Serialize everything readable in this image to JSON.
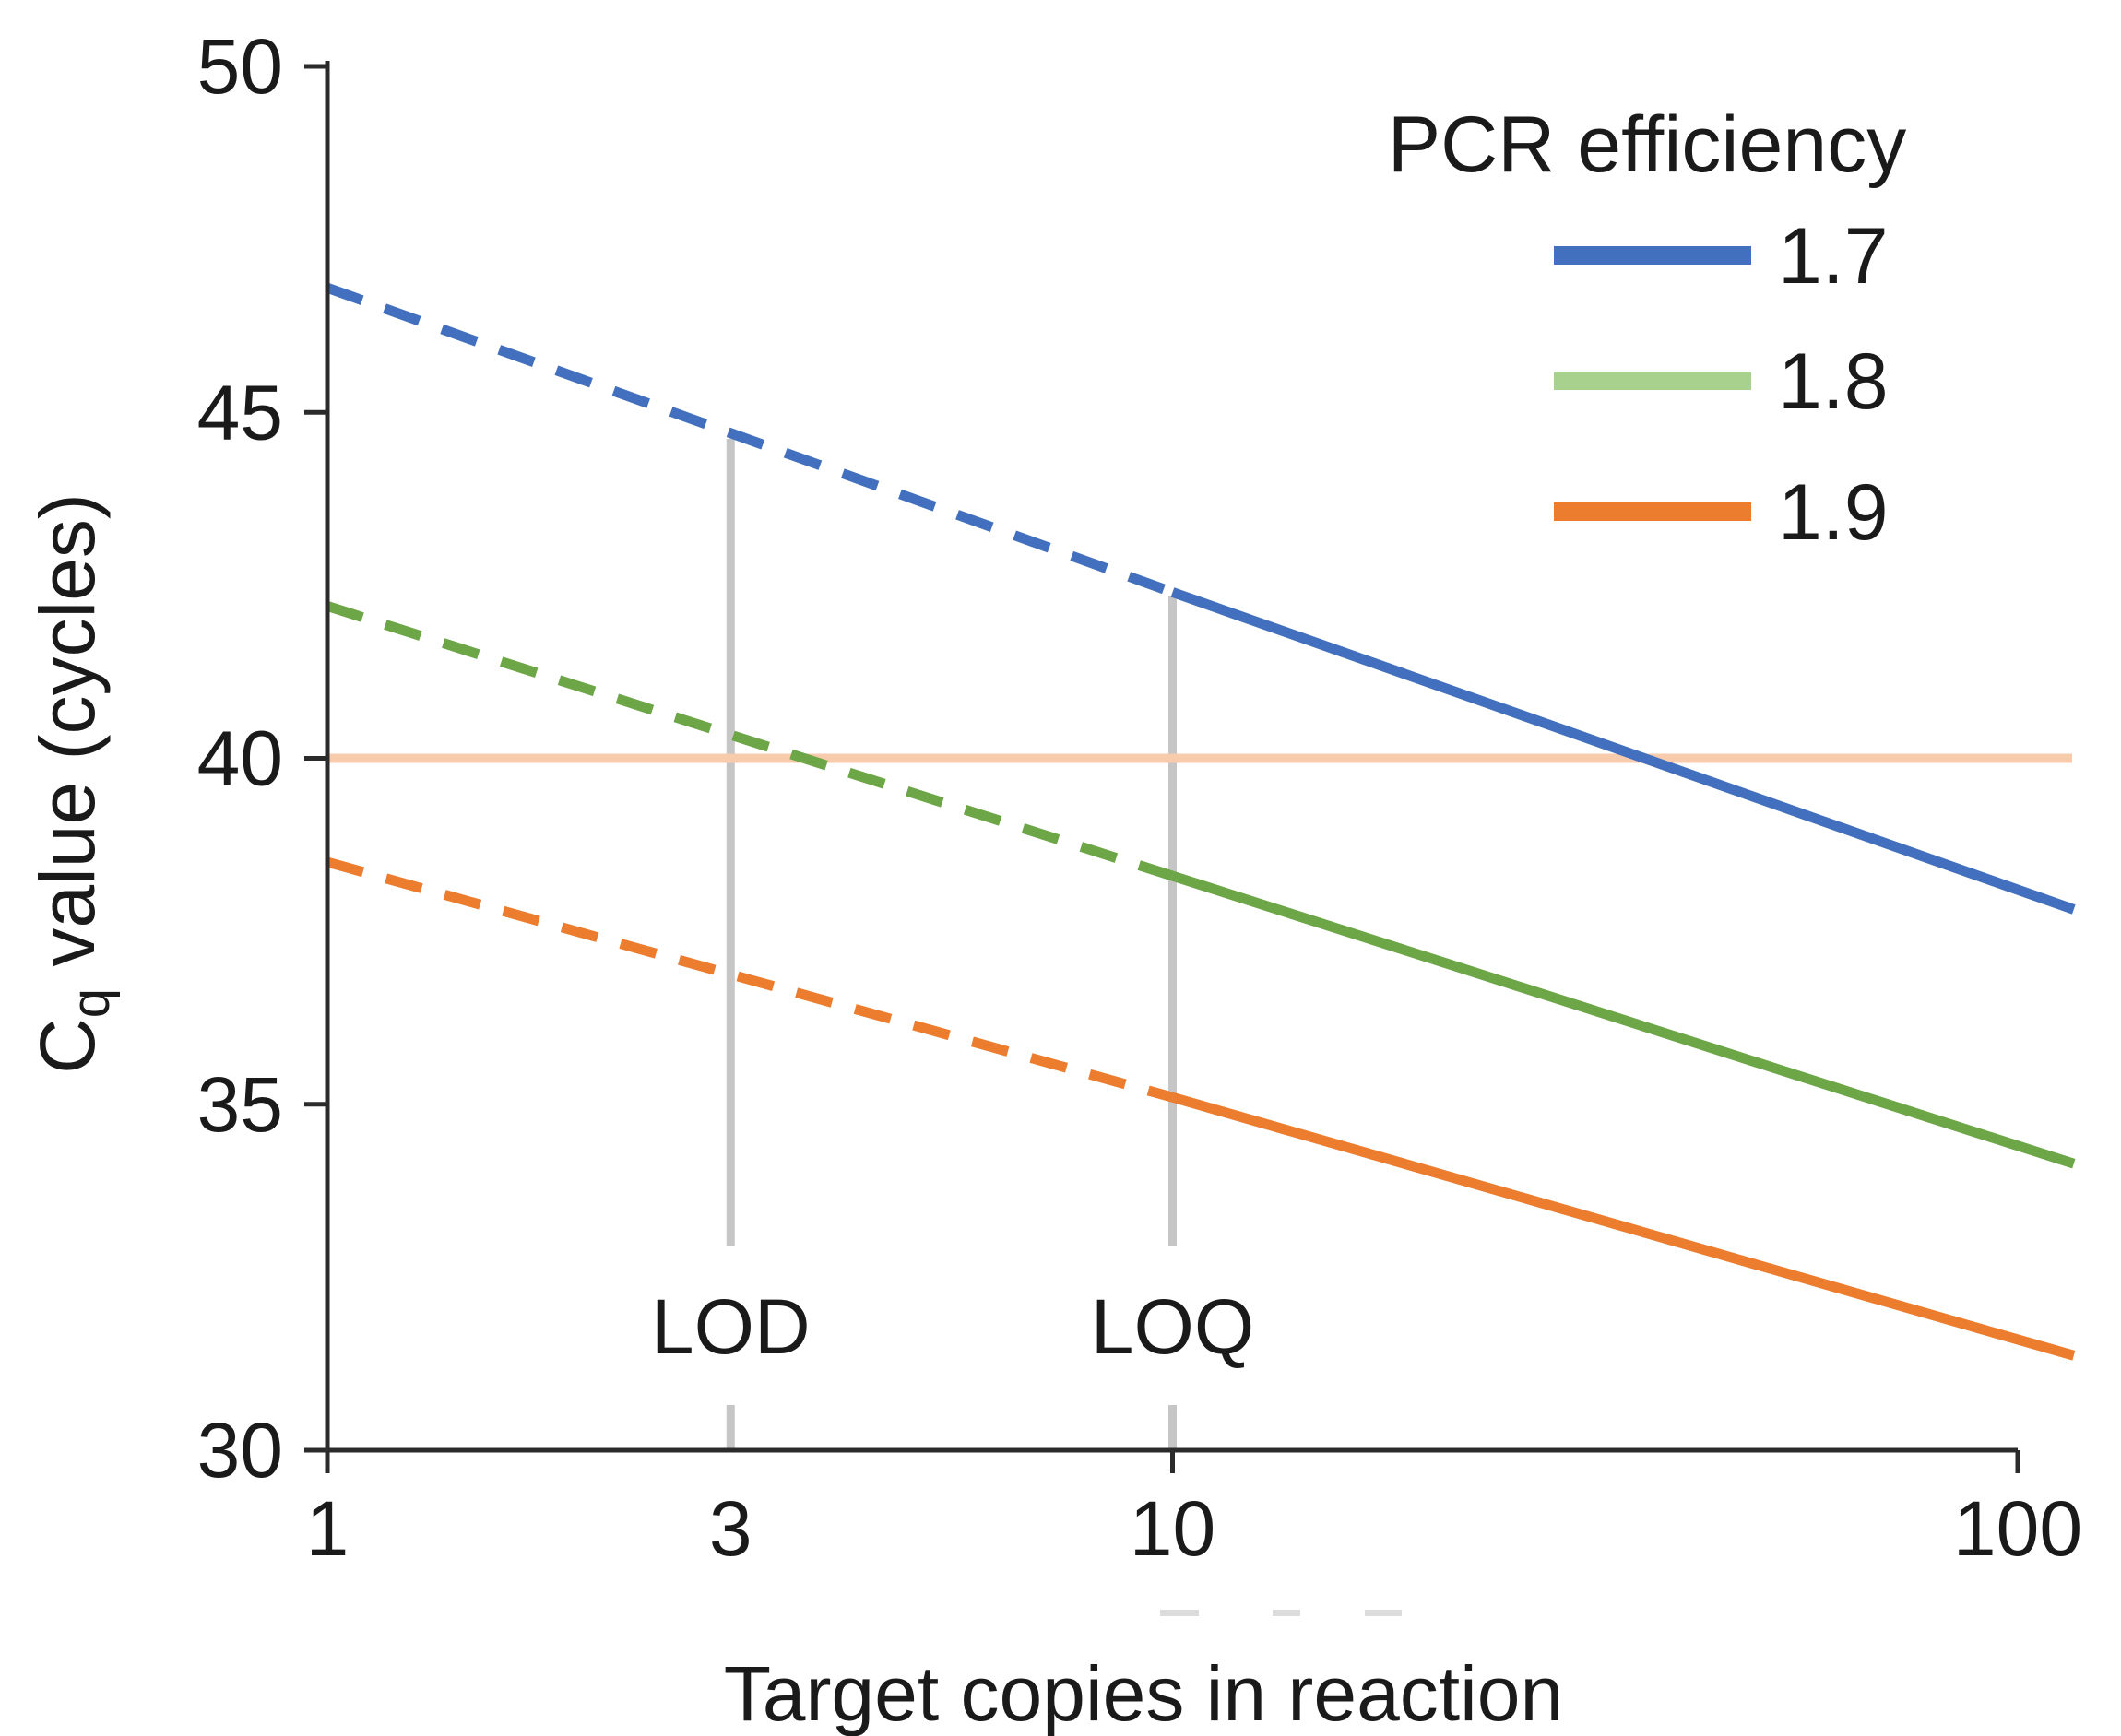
{
  "chart_data": {
    "type": "line",
    "title": "",
    "xlabel": "Target copies in reaction",
    "ylabel": "Cq value (cycles)",
    "ylabel_main": "C",
    "ylabel_sub": "q",
    "ylabel_rest": " value (cycles)",
    "x_scale": "log",
    "xlim_drawn": [
      1,
      116
    ],
    "ylim": [
      30,
      50
    ],
    "grid": "off",
    "x_ticks": [
      1,
      3,
      10,
      100
    ],
    "x_tick_labels": [
      "1",
      "3",
      "10",
      "100"
    ],
    "x_ticks_with_stub": [
      1,
      10,
      100
    ],
    "y_ticks": [
      50,
      45,
      40,
      35,
      30
    ],
    "y_tick_labels": [
      "50",
      "45",
      "40",
      "35",
      "30"
    ],
    "legend_title": "PCR efficiency",
    "legend_position": "top-right",
    "legend_entries": [
      "1.7",
      "1.8",
      "1.9"
    ],
    "series": [
      {
        "name": "1.7",
        "color": "#4270be",
        "legend_swatch_color": "#4270be",
        "dashed_below_x": 10,
        "cq_at_1": 46.8,
        "cq_at_3": 44.7,
        "cq_at_10": 42.4,
        "cq_at_100": 38.1
      },
      {
        "name": "1.8",
        "color": "#6ca646",
        "legend_swatch_color": "#a9d18e",
        "dashed_below_x": 10,
        "cq_at_1": 42.2,
        "cq_at_3": 40.3,
        "cq_at_10": 38.3,
        "cq_at_100": 34.4
      },
      {
        "name": "1.9",
        "color": "#ec7d2f",
        "legend_swatch_color": "#ec7d2f",
        "dashed_below_x": 10,
        "cq_at_1": 38.5,
        "cq_at_3": 36.9,
        "cq_at_10": 35.1,
        "cq_at_100": 31.6
      }
    ],
    "threshold_line": {
      "y": 40,
      "color": "#f8cbad"
    },
    "markers": [
      {
        "label": "LOD",
        "x": 3,
        "line_color": "#c6c6c6"
      },
      {
        "label": "LOQ",
        "x": 10,
        "line_color": "#c6c6c6"
      }
    ]
  }
}
